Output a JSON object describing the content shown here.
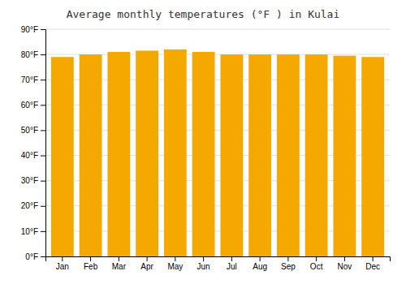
{
  "chart_data": {
    "type": "bar",
    "title": "Average monthly temperatures (°F ) in Kulai",
    "categories": [
      "Jan",
      "Feb",
      "Mar",
      "Apr",
      "May",
      "Jun",
      "Jul",
      "Aug",
      "Sep",
      "Oct",
      "Nov",
      "Dec"
    ],
    "values": [
      79,
      80,
      81,
      81.5,
      82,
      81,
      80,
      80,
      80,
      80,
      79.5,
      79
    ],
    "color": "#F5A800",
    "ylim": [
      0,
      90
    ],
    "yticks": [
      {
        "value": 0,
        "label": "0°F"
      },
      {
        "value": 10,
        "label": "10°F"
      },
      {
        "value": 20,
        "label": "20°F"
      },
      {
        "value": 30,
        "label": "30°F"
      },
      {
        "value": 40,
        "label": "40°F"
      },
      {
        "value": 50,
        "label": "50°F"
      },
      {
        "value": 60,
        "label": "60°F"
      },
      {
        "value": 70,
        "label": "70°F"
      },
      {
        "value": 80,
        "label": "80°F"
      },
      {
        "value": 90,
        "label": "90°F"
      }
    ],
    "grid": true
  }
}
